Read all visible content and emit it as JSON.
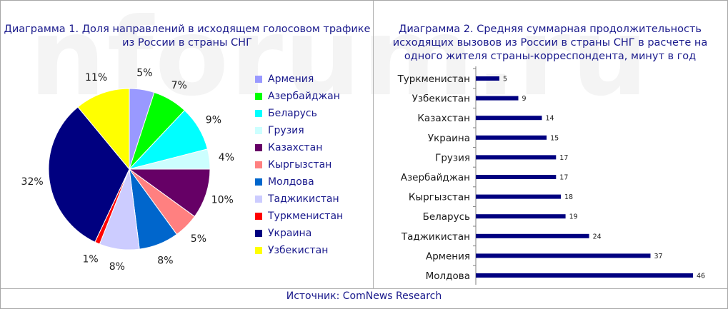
{
  "watermark": "nforum.ru",
  "source": "Источник: ComNews Research",
  "chart_data": [
    {
      "type": "pie",
      "title": "Диаграмма 1. Доля направлений в исходящем голосовом трафике из России в страны СНГ",
      "legend_position": "right",
      "categories": [
        "Армения",
        "Азербайджан",
        "Беларусь",
        "Грузия",
        "Казахстан",
        "Кыргызстан",
        "Молдова",
        "Таджикистан",
        "Туркменистан",
        "Украина",
        "Узбекистан"
      ],
      "values": [
        5,
        7,
        9,
        4,
        10,
        5,
        8,
        8,
        1,
        32,
        11
      ],
      "labels": [
        "5%",
        "7%",
        "9%",
        "4%",
        "10%",
        "5%",
        "8%",
        "8%",
        "1%",
        "32%",
        "11%"
      ],
      "colors": [
        "#9999ff",
        "#00ff00",
        "#00ffff",
        "#ccffff",
        "#660066",
        "#ff8080",
        "#0066cc",
        "#ccccff",
        "#ff0000",
        "#000080",
        "#ffff00"
      ]
    },
    {
      "type": "bar",
      "orientation": "horizontal",
      "title": "Диаграмма 2. Средняя суммарная продолжительность исходящих вызовов из России в страны СНГ в расчете на одного жителя страны-корреспондента, минут в год",
      "categories": [
        "Туркменистан",
        "Узбекистан",
        "Казахстан",
        "Украина",
        "Грузия",
        "Азербайджан",
        "Кыргызстан",
        "Беларусь",
        "Таджикистан",
        "Армения",
        "Молдова"
      ],
      "values": [
        5,
        9,
        14,
        15,
        17,
        17,
        18,
        19,
        24,
        37,
        46
      ],
      "data_labels": [
        "5",
        "9",
        "14",
        "15",
        "17",
        "17",
        "18",
        "19",
        "24",
        "37",
        "46"
      ],
      "bar_color": "#000080",
      "grid": false
    }
  ]
}
